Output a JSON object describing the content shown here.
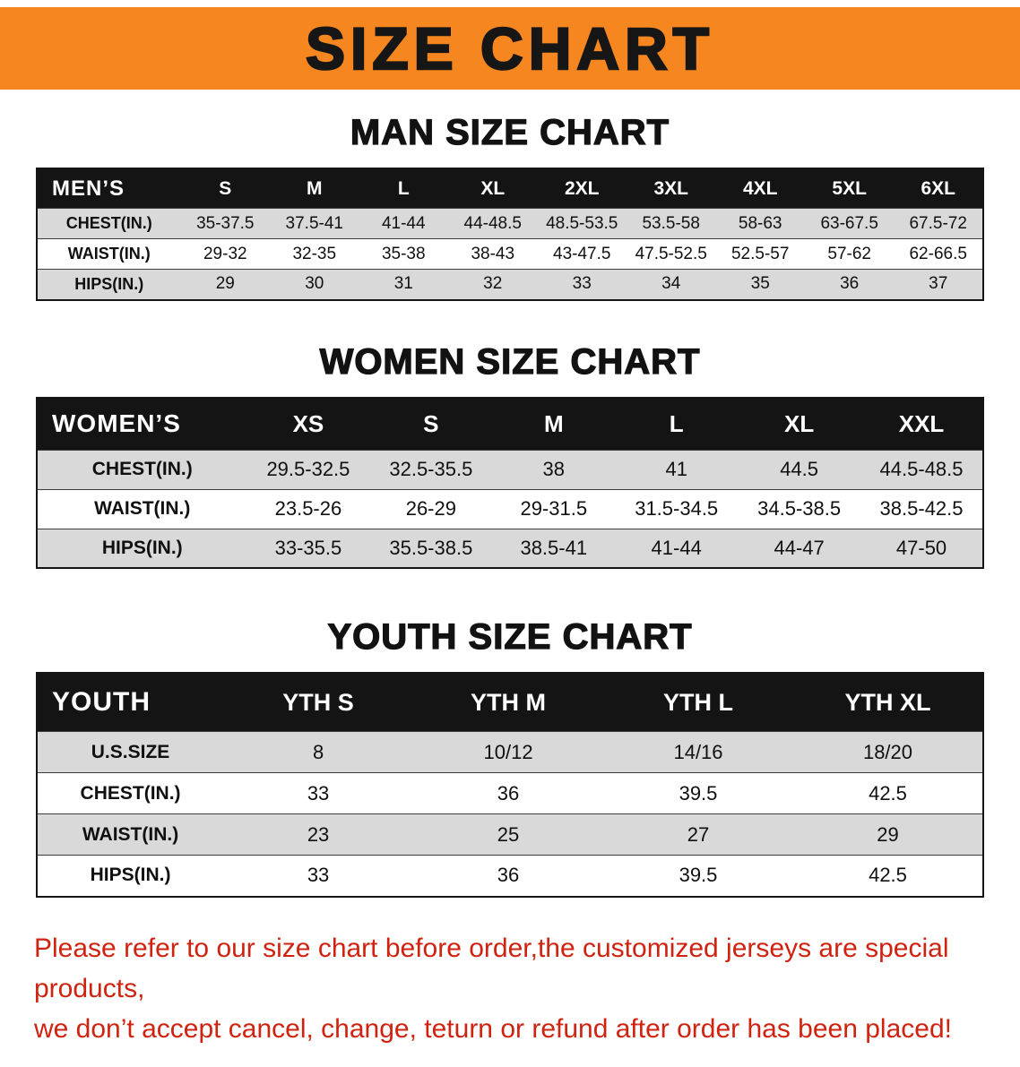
{
  "banner": {
    "title": "SIZE CHART"
  },
  "sections": [
    {
      "heading": "MAN SIZE CHART",
      "table": {
        "corner": "MEN’S",
        "columns": [
          "S",
          "M",
          "L",
          "XL",
          "2XL",
          "3XL",
          "4XL",
          "5XL",
          "6XL"
        ],
        "rows": [
          {
            "label": "CHEST(IN.)",
            "values": [
              "35-37.5",
              "37.5-41",
              "41-44",
              "44-48.5",
              "48.5-53.5",
              "53.5-58",
              "58-63",
              "63-67.5",
              "67.5-72"
            ]
          },
          {
            "label": "WAIST(IN.)",
            "values": [
              "29-32",
              "32-35",
              "35-38",
              "38-43",
              "43-47.5",
              "47.5-52.5",
              "52.5-57",
              "57-62",
              "62-66.5"
            ]
          },
          {
            "label": "HIPS(IN.)",
            "values": [
              "29",
              "30",
              "31",
              "32",
              "33",
              "34",
              "35",
              "36",
              "37"
            ]
          }
        ]
      }
    },
    {
      "heading": "WOMEN SIZE CHART",
      "table": {
        "corner": "WOMEN’S",
        "columns": [
          "XS",
          "S",
          "M",
          "L",
          "XL",
          "XXL"
        ],
        "rows": [
          {
            "label": "CHEST(IN.)",
            "values": [
              "29.5-32.5",
              "32.5-35.5",
              "38",
              "41",
              "44.5",
              "44.5-48.5"
            ]
          },
          {
            "label": "WAIST(IN.)",
            "values": [
              "23.5-26",
              "26-29",
              "29-31.5",
              "31.5-34.5",
              "34.5-38.5",
              "38.5-42.5"
            ]
          },
          {
            "label": "HIPS(IN.)",
            "values": [
              "33-35.5",
              "35.5-38.5",
              "38.5-41",
              "41-44",
              "44-47",
              "47-50"
            ]
          }
        ]
      }
    },
    {
      "heading": "YOUTH SIZE CHART",
      "table": {
        "corner": "YOUTH",
        "columns": [
          "YTH S",
          "YTH M",
          "YTH L",
          "YTH XL"
        ],
        "rows": [
          {
            "label": "U.S.SIZE",
            "values": [
              "8",
              "10/12",
              "14/16",
              "18/20"
            ]
          },
          {
            "label": "CHEST(IN.)",
            "values": [
              "33",
              "36",
              "39.5",
              "42.5"
            ]
          },
          {
            "label": "WAIST(IN.)",
            "values": [
              "23",
              "25",
              "27",
              "29"
            ]
          },
          {
            "label": "HIPS(IN.)",
            "values": [
              "33",
              "36",
              "39.5",
              "42.5"
            ]
          }
        ]
      }
    }
  ],
  "disclaimer": {
    "lines": [
      "Please refer to our size chart before order,the customized jerseys are special products,",
      "we don’t accept cancel, change, teturn or refund after order has been placed!"
    ]
  },
  "colors": {
    "banner_bg": "#f6861f",
    "table_header_bg": "#141414",
    "row_stripe": "#d9d9d9",
    "disclaimer_red": "#cf2310"
  }
}
